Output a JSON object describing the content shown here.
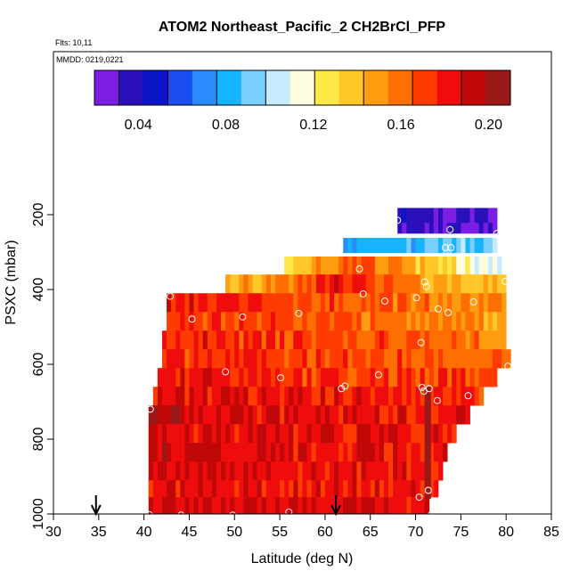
{
  "chart_data": {
    "type": "heatmap",
    "title": "ATOM2 Northeast_Pacific_2 CH2BrCl_PFP",
    "flights_label": "Flts: 10,11",
    "dates_label": "MMDD: 0219,0221",
    "xlabel": "Latitude (deg N)",
    "ylabel": "PSXC (mbar)",
    "xlim": [
      30,
      85
    ],
    "ylim": [
      1000,
      0
    ],
    "x_ticks": [
      30,
      35,
      40,
      45,
      50,
      55,
      60,
      65,
      70,
      75,
      80,
      85
    ],
    "y_ticks": [
      200,
      400,
      600,
      800,
      1000
    ],
    "colorbar": {
      "range": [
        0.02,
        0.21
      ],
      "tick_values": [
        0.04,
        0.08,
        0.12,
        0.16,
        0.2
      ],
      "tick_labels": [
        "0.04",
        "0.08",
        "0.12",
        "0.16",
        "0.20"
      ],
      "colors": [
        "#7a1ee6",
        "#2a10b8",
        "#0a14c8",
        "#1a4ef0",
        "#2a8cff",
        "#14b4ff",
        "#78d0ff",
        "#c8ecff",
        "#fffde0",
        "#ffe84a",
        "#ffc828",
        "#ff9c10",
        "#ff6e00",
        "#ff3c00",
        "#ee0c0c",
        "#c00808",
        "#9a1818"
      ]
    },
    "bands": [
      {
        "p_top": 182,
        "p_bot": 222,
        "lat_min": 68,
        "lat_max": 79,
        "v0": 0.04,
        "v1": 0.03
      },
      {
        "p_top": 222,
        "p_bot": 250,
        "lat_min": 68,
        "lat_max": 79,
        "v0": 0.035,
        "v1": 0.025
      },
      {
        "p_top": 262,
        "p_bot": 302,
        "lat_min": 62,
        "lat_max": 79,
        "v0": 0.075,
        "v1": 0.095
      },
      {
        "p_top": 312,
        "p_bot": 360,
        "lat_min": 55.5,
        "lat_max": 79.5,
        "v0": 0.11,
        "v1": 0.1,
        "peak": 0.165,
        "peak_at": 64
      },
      {
        "p_top": 360,
        "p_bot": 410,
        "lat_min": 49,
        "lat_max": 80,
        "v0": 0.15,
        "v1": 0.14,
        "peak": 0.185,
        "peak_at": 62
      },
      {
        "p_top": 410,
        "p_bot": 460,
        "lat_min": 42.5,
        "lat_max": 80,
        "v0": 0.185,
        "v1": 0.15
      },
      {
        "p_top": 460,
        "p_bot": 510,
        "lat_min": 42.5,
        "lat_max": 80,
        "v0": 0.175,
        "v1": 0.15
      },
      {
        "p_top": 510,
        "p_bot": 560,
        "lat_min": 42,
        "lat_max": 80,
        "v0": 0.18,
        "v1": 0.16
      },
      {
        "p_top": 560,
        "p_bot": 610,
        "lat_min": 42,
        "lat_max": 80.5,
        "v0": 0.175,
        "v1": 0.165
      },
      {
        "p_top": 610,
        "p_bot": 660,
        "lat_min": 41.5,
        "lat_max": 79,
        "v0": 0.18,
        "v1": 0.17
      },
      {
        "p_top": 660,
        "p_bot": 710,
        "lat_min": 41,
        "lat_max": 77.5,
        "v0": 0.185,
        "v1": 0.175
      },
      {
        "p_top": 710,
        "p_bot": 760,
        "lat_min": 40.5,
        "lat_max": 76,
        "v0": 0.19,
        "v1": 0.18
      },
      {
        "p_top": 760,
        "p_bot": 810,
        "lat_min": 40.5,
        "lat_max": 74.5,
        "v0": 0.185,
        "v1": 0.18
      },
      {
        "p_top": 810,
        "p_bot": 860,
        "lat_min": 40.5,
        "lat_max": 73.5,
        "v0": 0.19,
        "v1": 0.18
      },
      {
        "p_top": 860,
        "p_bot": 910,
        "lat_min": 40.5,
        "lat_max": 73,
        "v0": 0.19,
        "v1": 0.18
      },
      {
        "p_top": 910,
        "p_bot": 955,
        "lat_min": 40.5,
        "lat_max": 72.5,
        "v0": 0.185,
        "v1": 0.18
      },
      {
        "p_top": 955,
        "p_bot": 1000,
        "lat_min": 40.5,
        "lat_max": 71.5,
        "v0": 0.19,
        "v1": 0.185
      }
    ],
    "vertical_streak": {
      "lat_min": 71,
      "lat_max": 71.7,
      "p_top": 660,
      "p_bot": 960,
      "value": 0.205
    },
    "samples": [
      {
        "lat": 68,
        "p": 215
      },
      {
        "lat": 73.8,
        "p": 240
      },
      {
        "lat": 79,
        "p": 250
      },
      {
        "lat": 73.3,
        "p": 288
      },
      {
        "lat": 73.9,
        "p": 288
      },
      {
        "lat": 63.8,
        "p": 345
      },
      {
        "lat": 71,
        "p": 380
      },
      {
        "lat": 79.9,
        "p": 378
      },
      {
        "lat": 71.2,
        "p": 392
      },
      {
        "lat": 64.2,
        "p": 412
      },
      {
        "lat": 42.9,
        "p": 418
      },
      {
        "lat": 70.1,
        "p": 422
      },
      {
        "lat": 66.6,
        "p": 431
      },
      {
        "lat": 76.4,
        "p": 433
      },
      {
        "lat": 72.5,
        "p": 452
      },
      {
        "lat": 73.6,
        "p": 462
      },
      {
        "lat": 57.1,
        "p": 464
      },
      {
        "lat": 45.3,
        "p": 479
      },
      {
        "lat": 50.9,
        "p": 473
      },
      {
        "lat": 70.6,
        "p": 542
      },
      {
        "lat": 80.2,
        "p": 605
      },
      {
        "lat": 49,
        "p": 620
      },
      {
        "lat": 65.9,
        "p": 628
      },
      {
        "lat": 55.1,
        "p": 636
      },
      {
        "lat": 62.2,
        "p": 658
      },
      {
        "lat": 61.8,
        "p": 665
      },
      {
        "lat": 70.7,
        "p": 662
      },
      {
        "lat": 71.5,
        "p": 665
      },
      {
        "lat": 70.9,
        "p": 672
      },
      {
        "lat": 75.8,
        "p": 684
      },
      {
        "lat": 72.4,
        "p": 697
      },
      {
        "lat": 40.7,
        "p": 720
      },
      {
        "lat": 71.4,
        "p": 937
      },
      {
        "lat": 70.4,
        "p": 955
      },
      {
        "lat": 56,
        "p": 995
      },
      {
        "lat": 40.6,
        "p": 1002
      },
      {
        "lat": 44.1,
        "p": 1003
      },
      {
        "lat": 49.8,
        "p": 1003
      },
      {
        "lat": 71.7,
        "p": 1003
      }
    ],
    "arrows": [
      34.7,
      61.2
    ]
  }
}
